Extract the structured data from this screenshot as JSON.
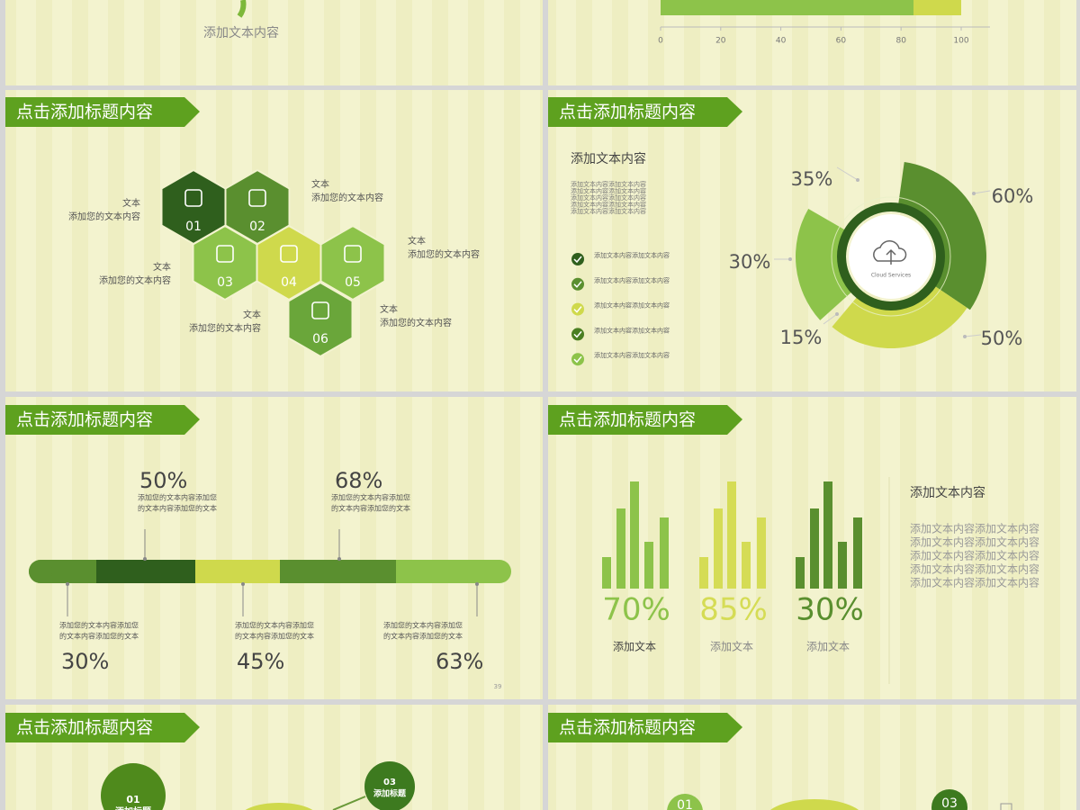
{
  "slides": [
    {
      "caption": "添加文本内容"
    },
    {
      "axis_ticks": [
        0,
        20,
        40,
        60,
        80,
        100
      ]
    },
    {
      "title": "点击添加标题内容",
      "hexagons": [
        "01",
        "02",
        "03",
        "04",
        "05",
        "06"
      ],
      "labels": [
        {
          "title": "文本",
          "text": "添加您的文本内容"
        },
        {
          "title": "文本",
          "text": "添加您的文本内容"
        },
        {
          "title": "文本",
          "text": "添加您的文本内容"
        },
        {
          "title": "文本",
          "text": "添加您的文本内容"
        },
        {
          "title": "文本",
          "text": "添加您的文本内容"
        },
        {
          "title": "文本",
          "text": "添加您的文本内容"
        }
      ]
    },
    {
      "title": "点击添加标题内容",
      "heading": "添加文本内容",
      "body": [
        "添加文本内容添加文本内容",
        "添加文本内容添加文本内容",
        "添加文本内容添加文本内容",
        "添加文本内容添加文本内容",
        "添加文本内容添加文本内容"
      ],
      "checklist": [
        "添加文本内容添加文本内容",
        "添加文本内容添加文本内容",
        "添加文本内容添加文本内容",
        "添加文本内容添加文本内容",
        "添加文本内容添加文本内容"
      ],
      "center_label": "Cloud Services",
      "percents": [
        "35%",
        "60%",
        "30%",
        "15%",
        "50%"
      ]
    },
    {
      "title": "点击添加标题内容",
      "top": [
        {
          "percent": "50%",
          "lines": [
            "添加您的文本内容添加您",
            "的文本内容添加您的文本"
          ]
        },
        {
          "percent": "68%",
          "lines": [
            "添加您的文本内容添加您",
            "的文本内容添加您的文本"
          ]
        }
      ],
      "bottom": [
        {
          "percent": "30%",
          "lines": [
            "添加您的文本内容添加您",
            "的文本内容添加您的文本"
          ]
        },
        {
          "percent": "45%",
          "lines": [
            "添加您的文本内容添加您",
            "的文本内容添加您的文本"
          ]
        },
        {
          "percent": "63%",
          "lines": [
            "添加您的文本内容添加您",
            "的文本内容添加您的文本"
          ]
        }
      ],
      "page_number": "39"
    },
    {
      "title": "点击添加标题内容",
      "groups": [
        {
          "percent": "70%",
          "label": "添加文本"
        },
        {
          "percent": "85%",
          "label": "添加文本"
        },
        {
          "percent": "30%",
          "label": "添加文本"
        }
      ],
      "heading": "添加文本内容",
      "body": [
        "添加文本内容添加文本内容",
        "添加文本内容添加文本内容",
        "添加文本内容添加文本内容",
        "添加文本内容添加文本内容",
        "添加文本内容添加文本内容"
      ]
    },
    {
      "title": "点击添加标题内容",
      "badges": [
        {
          "number": "01",
          "label": "添加标题"
        },
        {
          "number": "03",
          "label": "添加标题"
        }
      ]
    },
    {
      "title": "点击添加标题内容",
      "badges": [
        "01",
        "03"
      ]
    }
  ]
}
